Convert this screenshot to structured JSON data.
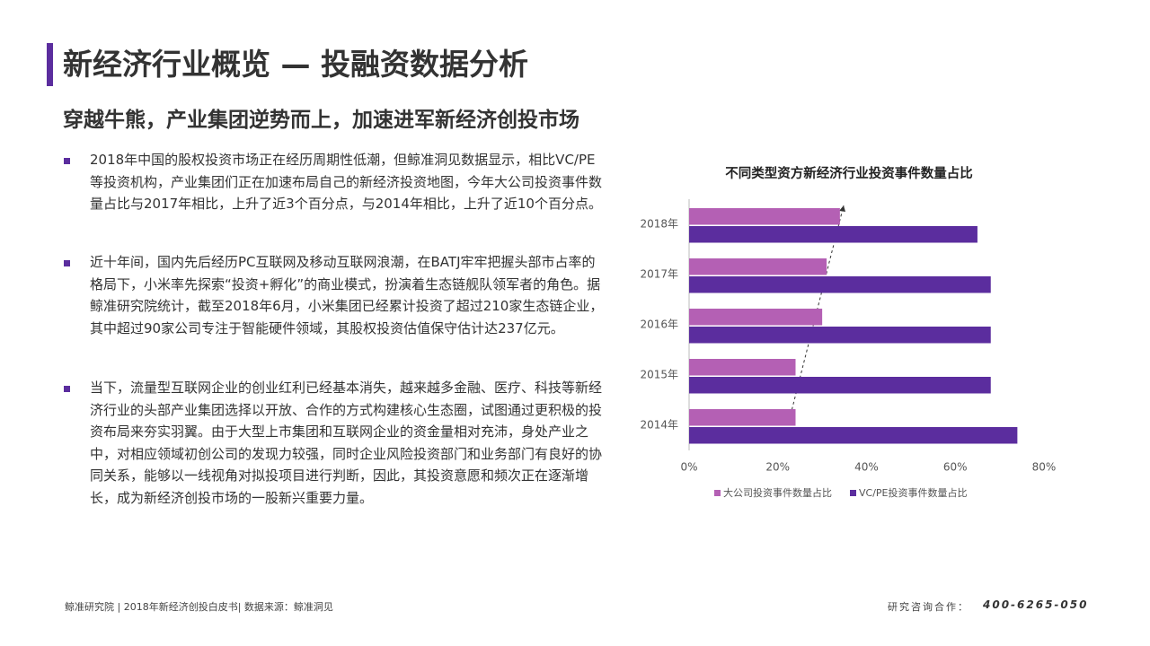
{
  "header": {
    "title": "新经济行业概览 — 投融资数据分析",
    "subtitle": "穿越牛熊，产业集团逆势而上，加速进军新经济创投市场"
  },
  "bullets": [
    "2018年中国的股权投资市场正在经历周期性低潮，但鲸准洞见数据显示，相比VC/PE等投资机构，产业集团们正在加速布局自己的新经济投资地图，今年大公司投资事件数量占比与2017年相比，上升了近3个百分点，与2014年相比，上升了近10个百分点。",
    "近十年间，国内先后经历PC互联网及移动互联网浪潮，在BATJ牢牢把握头部市占率的格局下，小米率先探索“投资+孵化”的商业模式，扮演着生态链舰队领军者的角色。据鲸准研究院统计，截至2018年6月，小米集团已经累计投资了超过210家生态链企业，其中超过90家公司专注于智能硬件领域，其股权投资估值保守估计达237亿元。",
    "当下，流量型互联网企业的创业红利已经基本消失，越来越多金融、医疗、科技等新经济行业的头部产业集团选择以开放、合作的方式构建核心生态圈，试图通过更积极的投资布局来夯实羽翼。由于大型上市集团和互联网企业的资金量相对充沛，身处产业之中，对相应领域初创公司的发现力较强，同时企业风险投资部门和业务部门有良好的协同关系，能够以一线视角对拟投项目进行判断，因此，其投资意愿和频次正在逐渐增长，成为新经济创投市场的一股新兴重要力量。"
  ],
  "chart_data": {
    "type": "hbar",
    "title": "不同类型资方新经济行业投资事件数量占比",
    "categories": [
      "2018年",
      "2017年",
      "2016年",
      "2015年",
      "2014年"
    ],
    "series": [
      {
        "name": "大公司投资事件数量占比",
        "color": "#b460b4",
        "values": [
          34,
          31,
          30,
          24,
          24
        ]
      },
      {
        "name": "VC/PE投资事件数量占比",
        "color": "#5b2d9e",
        "values": [
          65,
          68,
          68,
          68,
          74
        ]
      }
    ],
    "xlim": [
      0,
      80
    ],
    "xticks": [
      {
        "value": 0,
        "label": "0%"
      },
      {
        "value": 20,
        "label": "20%"
      },
      {
        "value": 40,
        "label": "40%"
      },
      {
        "value": 60,
        "label": "60%"
      },
      {
        "value": 80,
        "label": "80%"
      }
    ],
    "legend": "bottom"
  },
  "footer": {
    "left": "鲸准研究院 | 2018年新经济创投白皮书| 数据来源：鲸准洞见",
    "contact_label": "研究咨询合作：",
    "contact_phone": "400-6265-050"
  }
}
